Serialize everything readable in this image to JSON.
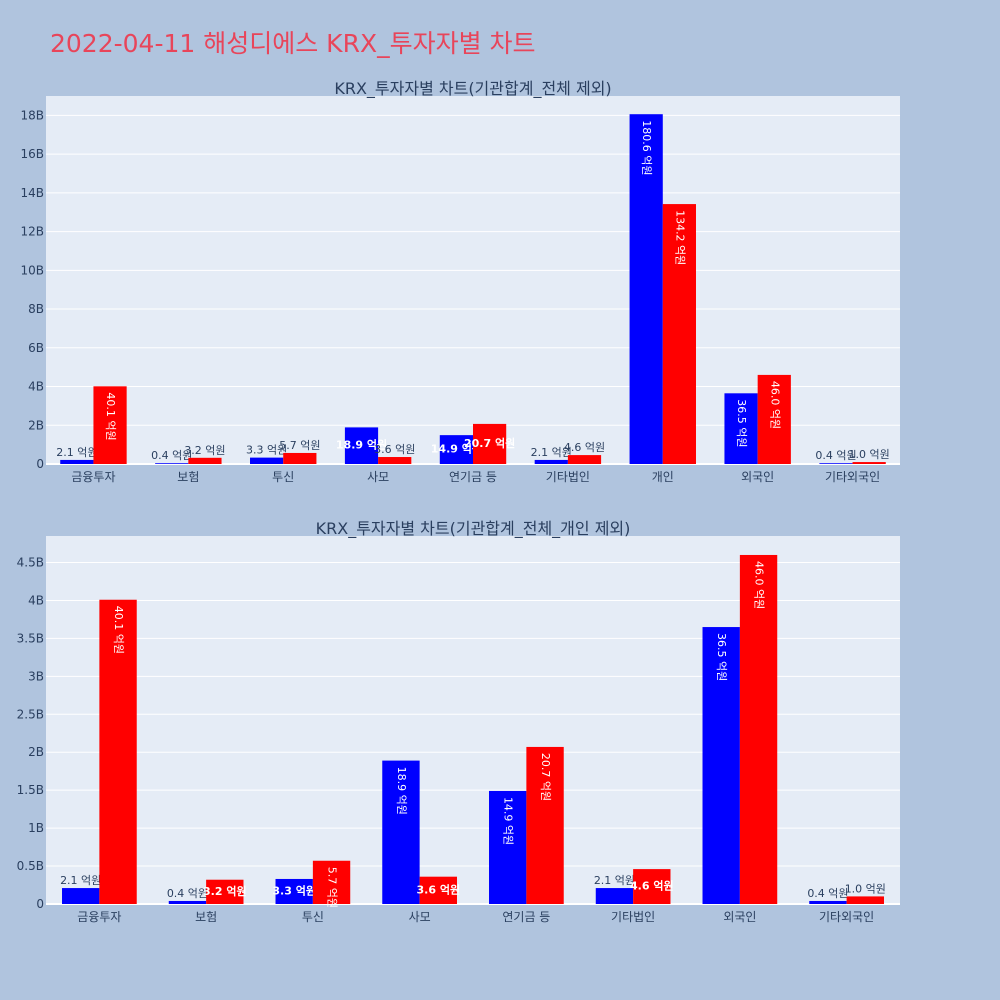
{
  "page": {
    "title": "2022-04-11 해성디에스 KRX_투자자별 차트"
  },
  "colors": {
    "background": "#b0c4de",
    "plot_bg": "#e5ecf6",
    "grid": "#ffffff",
    "series_a": "#0000ff",
    "series_b": "#ff0000",
    "title": "#e8455a"
  },
  "chart_data": [
    {
      "type": "bar",
      "title": "KRX_투자자별 차트(기관합계_전체 제외)",
      "categories": [
        "금융투자",
        "보험",
        "투신",
        "사모",
        "연기금 등",
        "기타법인",
        "개인",
        "외국인",
        "기타외국인"
      ],
      "ylim": [
        0,
        19
      ],
      "yticks": [
        0,
        2,
        4,
        6,
        8,
        10,
        12,
        14,
        16,
        18
      ],
      "ytick_labels": [
        "0",
        "2B",
        "4B",
        "6B",
        "8B",
        "10B",
        "12B",
        "14B",
        "16B",
        "18B"
      ],
      "grid": true,
      "series": [
        {
          "values": [
            0.21,
            0.04,
            0.33,
            1.89,
            1.49,
            0.21,
            18.06,
            3.65,
            0.04
          ],
          "labels": [
            "2.1 억원",
            "0.4 억원",
            "3.3 억원",
            "18.9 억원",
            "14.9 억원",
            "2.1 억원",
            "180.6 억원",
            "36.5 억원",
            "0.4 억원"
          ]
        },
        {
          "values": [
            4.01,
            0.32,
            0.57,
            0.36,
            2.07,
            0.46,
            13.42,
            4.6,
            0.1
          ],
          "labels": [
            "40.1 억원",
            "3.2 억원",
            "5.7 억원",
            "3.6 억원",
            "20.7 억원",
            "4.6 억원",
            "134.2 억원",
            "46.0 억원",
            "1.0 억원"
          ]
        }
      ]
    },
    {
      "type": "bar",
      "title": "KRX_투자자별 차트(기관합계_전체_개인 제외)",
      "categories": [
        "금융투자",
        "보험",
        "투신",
        "사모",
        "연기금 등",
        "기타법인",
        "외국인",
        "기타외국인"
      ],
      "ylim": [
        0,
        4.85
      ],
      "yticks": [
        0,
        0.5,
        1,
        1.5,
        2,
        2.5,
        3,
        3.5,
        4,
        4.5
      ],
      "ytick_labels": [
        "0",
        "0.5B",
        "1B",
        "1.5B",
        "2B",
        "2.5B",
        "3B",
        "3.5B",
        "4B",
        "4.5B"
      ],
      "grid": true,
      "series": [
        {
          "values": [
            0.21,
            0.04,
            0.33,
            1.89,
            1.49,
            0.21,
            3.65,
            0.04
          ],
          "labels": [
            "2.1 억원",
            "0.4 억원",
            "3.3 억원",
            "18.9 억원",
            "14.9 억원",
            "2.1 억원",
            "36.5 억원",
            "0.4 억원"
          ]
        },
        {
          "values": [
            4.01,
            0.32,
            0.57,
            0.36,
            2.07,
            0.46,
            4.6,
            0.1
          ],
          "labels": [
            "40.1 억원",
            "3.2 억원",
            "5.7 억원",
            "3.6 억원",
            "20.7 억원",
            "4.6 억원",
            "46.0 억원",
            "1.0 억원"
          ]
        }
      ]
    }
  ]
}
